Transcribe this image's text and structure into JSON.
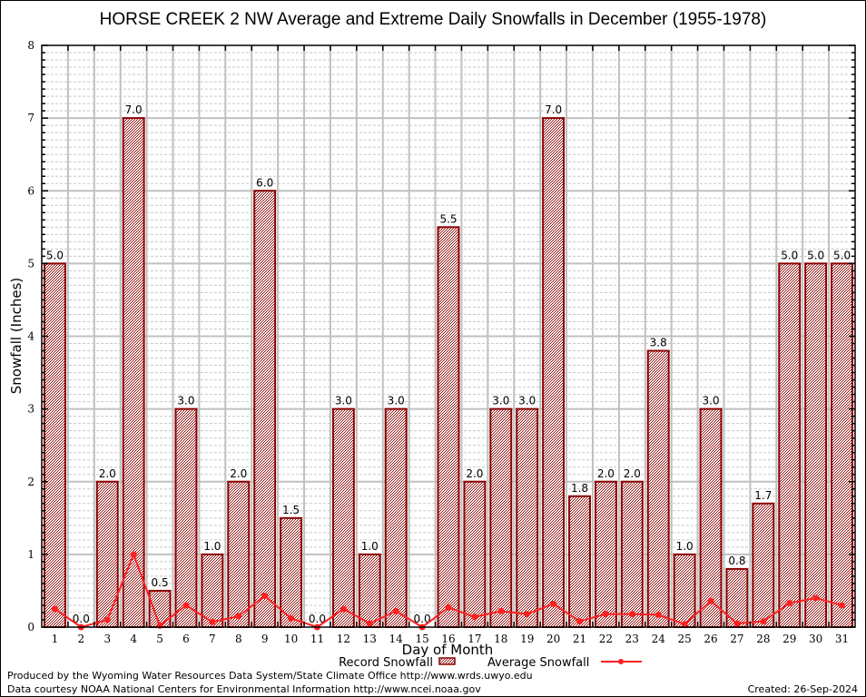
{
  "chart_data": {
    "type": "bar",
    "title": "HORSE CREEK 2 NW Average and Extreme Daily Snowfalls in December (1955-1978)",
    "xlabel": "Day of Month",
    "ylabel": "Snowfall (Inches)",
    "ylim": [
      0,
      8
    ],
    "yticks": [
      "0",
      "1",
      "2",
      "3",
      "4",
      "5",
      "6",
      "7",
      "8"
    ],
    "grid": true,
    "categories": [
      "1",
      "2",
      "3",
      "4",
      "5",
      "6",
      "7",
      "8",
      "9",
      "10",
      "11",
      "12",
      "13",
      "14",
      "15",
      "16",
      "17",
      "18",
      "19",
      "20",
      "21",
      "22",
      "23",
      "24",
      "25",
      "26",
      "27",
      "28",
      "29",
      "30",
      "31"
    ],
    "series": [
      {
        "name": "Record Snowfall",
        "type": "bar",
        "values": [
          5.0,
          0.0,
          2.0,
          7.0,
          0.5,
          3.0,
          1.0,
          2.0,
          6.0,
          1.5,
          0.0,
          3.0,
          1.0,
          3.0,
          0.0,
          5.5,
          2.0,
          3.0,
          3.0,
          7.0,
          1.8,
          2.0,
          2.0,
          3.8,
          1.0,
          3.0,
          0.8,
          1.7,
          5.0,
          5.0,
          5.0
        ],
        "labels": [
          "5.0",
          "0.0",
          "2.0",
          "7.0",
          "0.5",
          "3.0",
          "1.0",
          "2.0",
          "6.0",
          "1.5",
          "0.0",
          "3.0",
          "1.0",
          "3.0",
          "0.0",
          "5.5",
          "2.0",
          "3.0",
          "3.0",
          "7.0",
          "1.8",
          "2.0",
          "2.0",
          "3.8",
          "1.0",
          "3.0",
          "0.8",
          "1.7",
          "5.0",
          "5.0",
          "5.0"
        ],
        "color": "#8b0000"
      },
      {
        "name": "Average Snowfall",
        "type": "line",
        "values": [
          0.25,
          0.0,
          0.1,
          1.0,
          0.02,
          0.3,
          0.07,
          0.15,
          0.43,
          0.12,
          0.0,
          0.25,
          0.05,
          0.22,
          0.0,
          0.27,
          0.14,
          0.22,
          0.18,
          0.32,
          0.08,
          0.18,
          0.18,
          0.17,
          0.04,
          0.36,
          0.05,
          0.08,
          0.33,
          0.4,
          0.3
        ],
        "color": "#ff2020"
      }
    ],
    "legend": "bottom-center"
  },
  "footer": {
    "produced_by": "Produced by the Wyoming Water Resources Data System/State Climate Office http://www.wrds.uwyo.edu",
    "data_courtesy": "Data courtesy NOAA National Centers for Environmental Information http://www.ncei.noaa.gov",
    "created": "Created: 26-Sep-2024"
  },
  "colors": {
    "bar_edge": "#8b0000",
    "line": "#ff2020",
    "grid_major": "#c0c0c0",
    "grid_minor": "#c8c8c8"
  }
}
